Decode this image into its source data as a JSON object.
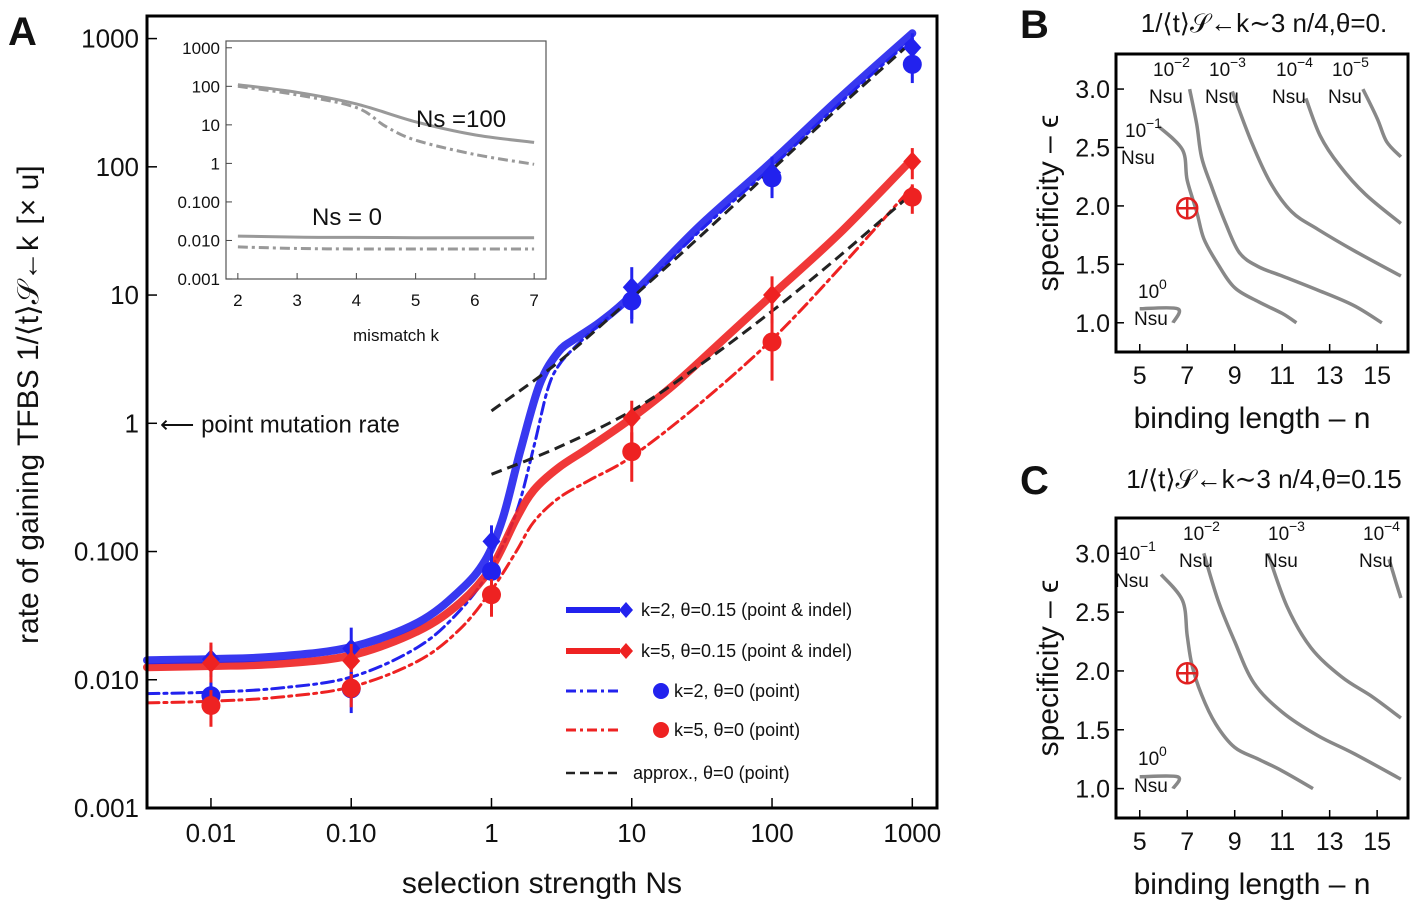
{
  "chart_data": [
    {
      "panel": "A",
      "type": "line",
      "xscale": "log",
      "yscale": "log",
      "xlabel": "selection strength  Ns",
      "ylabel": "rate of gaining TFBS 1/⟨t⟩𝒮←k",
      "yunit": "[× u]",
      "xlim": [
        0.0035,
        1500
      ],
      "ylim": [
        0.001,
        1500
      ],
      "xticks": [
        "0.01",
        "0.10",
        "1",
        "10",
        "100",
        "1000"
      ],
      "yticks": [
        "0.001",
        "0.010",
        "0.100",
        "1",
        "10",
        "100",
        "1000"
      ],
      "annotation": "⟵ point mutation rate",
      "annotation_y": 1,
      "legend_position": "bottom-right",
      "series": [
        {
          "name": "k=2, θ=0.15 (point & indel)",
          "color": "#2222ee",
          "style": "solid-thick",
          "marker": "diamond",
          "x": [
            0.0035,
            0.01,
            0.03,
            0.1,
            0.3,
            0.6,
            0.9,
            1.2,
            1.6,
            2.2,
            3,
            4,
            6,
            10,
            30,
            100,
            300,
            1000
          ],
          "y": [
            0.0142,
            0.0145,
            0.0152,
            0.018,
            0.028,
            0.05,
            0.085,
            0.18,
            0.6,
            2.0,
            3.6,
            4.6,
            6.2,
            10,
            34,
            110,
            340,
            1100
          ],
          "points": [
            [
              0.01,
              0.0145,
              0.004
            ],
            [
              0.1,
              0.0175,
              0.008
            ],
            [
              1,
              0.12,
              0.04
            ],
            [
              10,
              11.5,
              5
            ],
            [
              100,
              90,
              30
            ],
            [
              1000,
              850,
              250
            ]
          ]
        },
        {
          "name": "k=5, θ=0.15 (point & indel)",
          "color": "#ee2222",
          "style": "solid-thick",
          "marker": "diamond",
          "x": [
            0.0035,
            0.01,
            0.03,
            0.1,
            0.3,
            0.6,
            1,
            1.5,
            2,
            3,
            5,
            10,
            20,
            50,
            100,
            300,
            1000
          ],
          "y": [
            0.0125,
            0.0128,
            0.0133,
            0.0155,
            0.024,
            0.04,
            0.075,
            0.18,
            0.3,
            0.45,
            0.65,
            1.1,
            2.0,
            5.0,
            10,
            30,
            115
          ],
          "points": [
            [
              0.01,
              0.0135,
              0.006
            ],
            [
              0.1,
              0.014,
              0.005
            ],
            [
              1,
              0.07,
              0.02
            ],
            [
              10,
              1.1,
              0.4
            ],
            [
              100,
              10,
              4
            ],
            [
              1000,
              110,
              30
            ]
          ]
        },
        {
          "name": "k=2, θ=0 (point)",
          "color": "#2222ee",
          "style": "dashdot",
          "marker": "circle",
          "x": [
            0.0035,
            0.01,
            0.03,
            0.1,
            0.3,
            0.6,
            1,
            1.5,
            2,
            2.5,
            3,
            4,
            6,
            10,
            30,
            100,
            300,
            1000
          ],
          "y": [
            0.0078,
            0.008,
            0.0086,
            0.0105,
            0.018,
            0.035,
            0.075,
            0.2,
            0.65,
            1.8,
            2.8,
            4.0,
            6.0,
            9.5,
            31,
            100,
            310,
            1000
          ],
          "points": [
            [
              0.01,
              0.0075,
              0.002
            ],
            [
              0.1,
              0.0085,
              0.003
            ],
            [
              1,
              0.07,
              0.02
            ],
            [
              10,
              9.0,
              3
            ],
            [
              100,
              82,
              25
            ],
            [
              1000,
              630,
              180
            ]
          ]
        },
        {
          "name": "k=5, θ=0 (point)",
          "color": "#ee2222",
          "style": "dashdot",
          "marker": "circle",
          "x": [
            0.0035,
            0.01,
            0.03,
            0.1,
            0.3,
            0.6,
            1,
            1.5,
            2,
            3,
            5,
            10,
            30,
            100,
            300,
            1000
          ],
          "y": [
            0.0066,
            0.0068,
            0.0073,
            0.0088,
            0.014,
            0.025,
            0.05,
            0.1,
            0.17,
            0.26,
            0.36,
            0.55,
            1.4,
            4.5,
            16,
            70
          ],
          "points": [
            [
              0.01,
              0.0063,
              0.002
            ],
            [
              0.1,
              0.0086,
              0.0025
            ],
            [
              1,
              0.046,
              0.015
            ],
            [
              10,
              0.6,
              0.25
            ],
            [
              100,
              4.3,
              2.2
            ],
            [
              1000,
              58,
              15
            ]
          ]
        },
        {
          "name": "approx., θ=0 (point)",
          "color": "#222222",
          "style": "dashed",
          "segments": [
            {
              "x": [
                1,
                3,
                10,
                30,
                100,
                300,
                1000
              ],
              "y": [
                1.25,
                3.0,
                9.5,
                28,
                95,
                290,
                950
              ]
            },
            {
              "x": [
                1,
                3,
                10,
                30,
                100,
                300,
                1000
              ],
              "y": [
                0.4,
                0.65,
                1.25,
                2.8,
                7.5,
                20,
                62
              ]
            }
          ]
        }
      ],
      "inset": {
        "type": "line",
        "yscale": "log",
        "xlabel": "mismatch k",
        "xlim": [
          1.8,
          7.2
        ],
        "ylim": [
          0.001,
          1500
        ],
        "xticks": [
          "2",
          "3",
          "4",
          "5",
          "6",
          "7"
        ],
        "yticks": [
          "0.001",
          "0.010",
          "0.100",
          "1",
          "10",
          "100",
          "1000"
        ],
        "labels": [
          "Ns =100",
          "Ns = 0"
        ],
        "series": [
          {
            "color": "#999999",
            "style": "solid",
            "x": [
              2,
              3,
              4,
              5,
              6,
              7
            ],
            "y": [
              110,
              70,
              35,
              12,
              5.5,
              3.5
            ]
          },
          {
            "color": "#999999",
            "style": "dashdot",
            "x": [
              2,
              3,
              4,
              4.5,
              5,
              6,
              7
            ],
            "y": [
              100,
              60,
              28,
              9,
              4,
              1.7,
              0.95
            ]
          },
          {
            "color": "#999999",
            "style": "solid",
            "x": [
              2,
              3,
              4,
              5,
              6,
              7
            ],
            "y": [
              0.013,
              0.0122,
              0.012,
              0.0118,
              0.0118,
              0.0118
            ]
          },
          {
            "color": "#999999",
            "style": "dashdot",
            "x": [
              2,
              3,
              4,
              5,
              6,
              7
            ],
            "y": [
              0.0068,
              0.0062,
              0.006,
              0.006,
              0.006,
              0.006
            ]
          }
        ]
      }
    },
    {
      "panel": "B",
      "type": "contour",
      "title": "1/⟨t⟩𝒮←k∼3 n/4,θ=0.",
      "xlabel": "binding length – n",
      "ylabel": "specificity – ϵ",
      "xlim": [
        4,
        16.3
      ],
      "ylim": [
        0.75,
        3.3
      ],
      "xticks": [
        "5",
        "7",
        "9",
        "11",
        "13",
        "15"
      ],
      "yticks": [
        "1.0",
        "1.5",
        "2.0",
        "2.5",
        "3.0"
      ],
      "marker": {
        "x": 7,
        "y": 1.98
      },
      "contours": [
        {
          "label_base": "10",
          "label_exp": "0",
          "label_unit": "Nsu",
          "points": [
            [
              5,
              1.12
            ],
            [
              6.6,
              1.12
            ],
            [
              6.4,
              1.0
            ]
          ]
        },
        {
          "label_base": "10",
          "label_exp": "−1",
          "label_unit": "Nsu",
          "points": [
            [
              5.8,
              2.68
            ],
            [
              6.8,
              2.48
            ],
            [
              7,
              2.22
            ],
            [
              7.4,
              1.95
            ],
            [
              7.7,
              1.72
            ],
            [
              8.3,
              1.5
            ],
            [
              9,
              1.3
            ],
            [
              10,
              1.18
            ],
            [
              11,
              1.08
            ],
            [
              11.6,
              1.0
            ]
          ]
        },
        {
          "label_base": "10",
          "label_exp": "−2",
          "label_unit": "Nsu",
          "points": [
            [
              7.1,
              3.0
            ],
            [
              7.4,
              2.7
            ],
            [
              7.6,
              2.42
            ],
            [
              8.0,
              2.18
            ],
            [
              8.6,
              1.86
            ],
            [
              9.2,
              1.6
            ],
            [
              10,
              1.48
            ],
            [
              11,
              1.4
            ],
            [
              12.5,
              1.28
            ],
            [
              14,
              1.15
            ],
            [
              15.2,
              1.0
            ]
          ]
        },
        {
          "label_base": "10",
          "label_exp": "−3",
          "label_unit": "Nsu",
          "points": [
            [
              8.9,
              2.98
            ],
            [
              9.7,
              2.55
            ],
            [
              10.5,
              2.2
            ],
            [
              11.4,
              1.95
            ],
            [
              12.5,
              1.8
            ],
            [
              14,
              1.62
            ],
            [
              16,
              1.4
            ]
          ]
        },
        {
          "label_base": "10",
          "label_exp": "−4",
          "label_unit": "Nsu",
          "points": [
            [
              12,
              2.92
            ],
            [
              12.6,
              2.6
            ],
            [
              13.4,
              2.35
            ],
            [
              14.5,
              2.1
            ],
            [
              16,
              1.85
            ]
          ]
        },
        {
          "label_base": "10",
          "label_exp": "−5",
          "label_unit": "Nsu",
          "points": [
            [
              14.4,
              3.0
            ],
            [
              15,
              2.75
            ],
            [
              15.4,
              2.55
            ],
            [
              16,
              2.42
            ]
          ]
        }
      ]
    },
    {
      "panel": "C",
      "type": "contour",
      "title": "1/⟨t⟩𝒮←k∼3 n/4,θ=0.15",
      "xlabel": "binding length – n",
      "ylabel": "specificity – ϵ",
      "xlim": [
        4,
        16.3
      ],
      "ylim": [
        0.75,
        3.3
      ],
      "xticks": [
        "5",
        "7",
        "9",
        "11",
        "13",
        "15"
      ],
      "yticks": [
        "1.0",
        "1.5",
        "2.0",
        "2.5",
        "3.0"
      ],
      "marker": {
        "x": 7,
        "y": 1.98
      },
      "contours": [
        {
          "label_base": "10",
          "label_exp": "0",
          "label_unit": "Nsu",
          "points": [
            [
              5,
              1.1
            ],
            [
              6.6,
              1.1
            ],
            [
              6.4,
              1.0
            ]
          ]
        },
        {
          "label_base": "10",
          "label_exp": "−1",
          "label_unit": "Nsu",
          "points": [
            [
              5.9,
              2.82
            ],
            [
              6.8,
              2.6
            ],
            [
              7,
              2.3
            ],
            [
              7.2,
              2.05
            ],
            [
              7.6,
              1.8
            ],
            [
              8.2,
              1.55
            ],
            [
              9,
              1.35
            ],
            [
              10,
              1.25
            ],
            [
              11,
              1.15
            ],
            [
              12.3,
              1.0
            ]
          ]
        },
        {
          "label_base": "10",
          "label_exp": "−2",
          "label_unit": "Nsu",
          "points": [
            [
              7.7,
              3.0
            ],
            [
              8.3,
              2.6
            ],
            [
              9,
              2.25
            ],
            [
              9.8,
              1.9
            ],
            [
              11,
              1.65
            ],
            [
              12.5,
              1.45
            ],
            [
              14,
              1.3
            ],
            [
              16,
              1.08
            ]
          ]
        },
        {
          "label_base": "10",
          "label_exp": "−3",
          "label_unit": "Nsu",
          "points": [
            [
              10.4,
              3.0
            ],
            [
              11.2,
              2.55
            ],
            [
              12.2,
              2.2
            ],
            [
              13.5,
              1.95
            ],
            [
              14.8,
              1.78
            ],
            [
              16,
              1.6
            ]
          ]
        },
        {
          "label_base": "10",
          "label_exp": "−4",
          "label_unit": "Nsu",
          "points": [
            [
              15.5,
              2.95
            ],
            [
              15.8,
              2.75
            ],
            [
              16,
              2.62
            ]
          ]
        }
      ]
    }
  ]
}
